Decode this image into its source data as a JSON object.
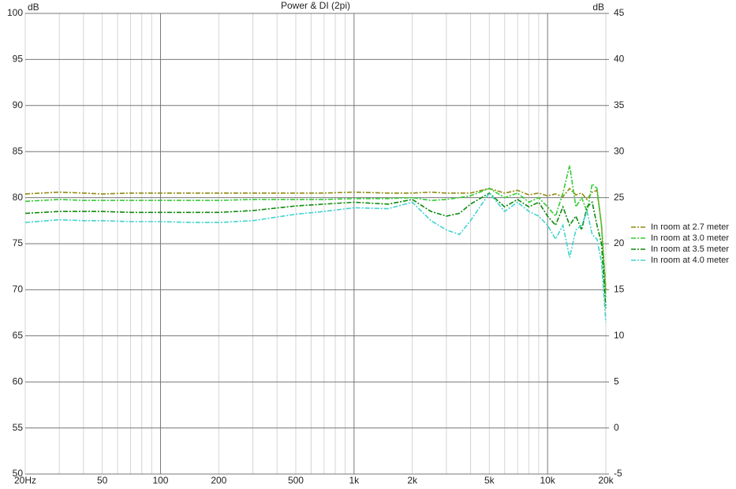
{
  "chart_data": {
    "type": "line",
    "title": "Power & DI (2pi)",
    "y_label": "dB",
    "y2_label": "dB",
    "x_log": true,
    "grid": true,
    "legend": "right",
    "x": [
      20,
      30,
      40,
      50,
      70,
      100,
      150,
      200,
      300,
      500,
      700,
      1000,
      1500,
      2000,
      2500,
      3000,
      3500,
      4000,
      5000,
      6000,
      7000,
      8000,
      9000,
      10000,
      11000,
      12000,
      13000,
      14000,
      15000,
      16000,
      17000,
      18000,
      19000,
      20000
    ],
    "xlim": [
      20,
      20000
    ],
    "xticks": [
      {
        "value": 20,
        "label": "20Hz"
      },
      50,
      100,
      200,
      500,
      {
        "value": 1000,
        "label": "1k"
      },
      {
        "value": 2000,
        "label": "2k"
      },
      {
        "value": 5000,
        "label": "5k"
      },
      {
        "value": 10000,
        "label": "10k"
      },
      {
        "value": 20000,
        "label": "20k"
      }
    ],
    "x_minor_ticks": [
      30,
      40,
      60,
      70,
      80,
      90,
      300,
      400,
      600,
      700,
      800,
      900,
      3000,
      4000,
      6000,
      7000,
      8000,
      9000
    ],
    "ylim": [
      50,
      100
    ],
    "yticks": [
      50,
      55,
      60,
      65,
      70,
      75,
      80,
      85,
      90,
      95,
      100
    ],
    "y2lim": [
      -5,
      45
    ],
    "y2ticks": [
      -5,
      0,
      5,
      10,
      15,
      20,
      25,
      30,
      35,
      40,
      45
    ],
    "series": [
      {
        "name": "In room at 2.7 meter",
        "color": "#8f8a10",
        "values": [
          80.4,
          80.6,
          80.5,
          80.4,
          80.5,
          80.5,
          80.5,
          80.5,
          80.5,
          80.5,
          80.5,
          80.6,
          80.5,
          80.5,
          80.6,
          80.5,
          80.5,
          80.5,
          81,
          80.5,
          80.8,
          80.3,
          80.5,
          80.2,
          80.4,
          80.1,
          81,
          80.3,
          80.5,
          79.8,
          80.6,
          80.8,
          77,
          70
        ]
      },
      {
        "name": "In room at 3.0 meter",
        "color": "#33cc33",
        "values": [
          79.6,
          79.8,
          79.7,
          79.7,
          79.7,
          79.7,
          79.7,
          79.7,
          79.8,
          79.8,
          79.8,
          79.9,
          79.9,
          80,
          79.7,
          79.8,
          80,
          80.2,
          81,
          80,
          80.5,
          79.5,
          80,
          79,
          78,
          80.5,
          83.5,
          79,
          80,
          78.5,
          81.5,
          81,
          77,
          69
        ]
      },
      {
        "name": "In room at 3.5 meter",
        "color": "#0b8a0b",
        "values": [
          78.3,
          78.5,
          78.5,
          78.5,
          78.4,
          78.4,
          78.4,
          78.4,
          78.6,
          79.1,
          79.3,
          79.5,
          79.3,
          79.8,
          78.5,
          78,
          78.3,
          79.3,
          80.5,
          79,
          79.8,
          79,
          79.5,
          78,
          77,
          79,
          77,
          78,
          76.5,
          79,
          79.5,
          77,
          75,
          68
        ]
      },
      {
        "name": "In room at 4.0 meter",
        "color": "#40d4d0",
        "values": [
          77.3,
          77.6,
          77.5,
          77.5,
          77.4,
          77.4,
          77.3,
          77.3,
          77.5,
          78.2,
          78.5,
          78.9,
          78.8,
          79.5,
          77.5,
          76.5,
          76,
          77.5,
          80.5,
          78.5,
          79.5,
          78.5,
          78,
          77,
          75.5,
          77,
          73.5,
          76.5,
          77,
          78.5,
          76,
          75.5,
          73,
          66.5
        ]
      }
    ]
  }
}
